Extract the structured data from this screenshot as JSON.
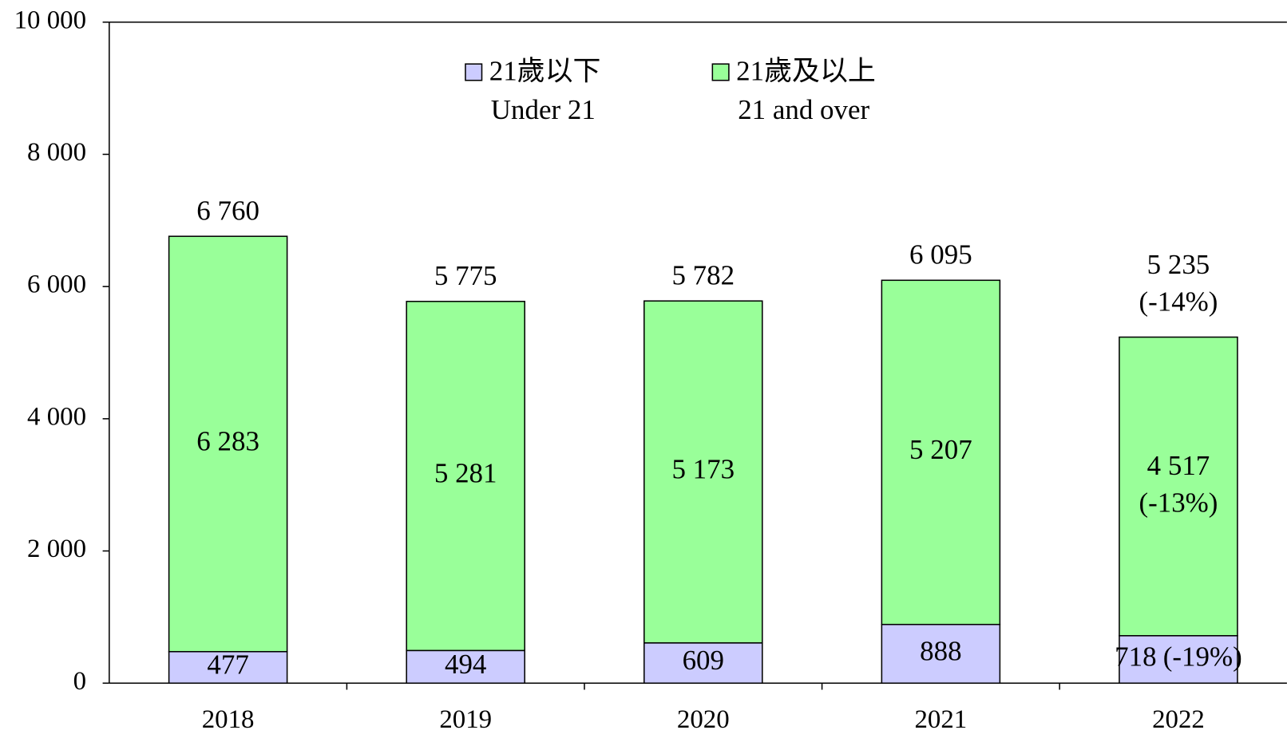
{
  "chart_data": {
    "type": "bar",
    "stacked": true,
    "categories": [
      "2018",
      "2019",
      "2020",
      "2021",
      "2022"
    ],
    "series": [
      {
        "name": "21歲以下",
        "name_en": "Under 21",
        "color": "#ccccff",
        "values": [
          477,
          494,
          609,
          888,
          718
        ],
        "value_labels": [
          "477",
          "494",
          "609",
          "888",
          "718"
        ],
        "change_labels": [
          null,
          null,
          null,
          null,
          "(-19%)"
        ]
      },
      {
        "name": "21歲及以上",
        "name_en": "21 and over",
        "color": "#99ff99",
        "values": [
          6283,
          5281,
          5173,
          5207,
          4517
        ],
        "value_labels": [
          "6 283",
          "5 281",
          "5 173",
          "5 207",
          "4 517"
        ],
        "change_labels": [
          null,
          null,
          null,
          null,
          "(-13%)"
        ]
      }
    ],
    "totals": {
      "values": [
        6760,
        5775,
        5782,
        6095,
        5235
      ],
      "value_labels": [
        "6 760",
        "5 775",
        "5 782",
        "6 095",
        "5 235"
      ],
      "change_labels": [
        null,
        null,
        null,
        null,
        "(-14%)"
      ]
    },
    "ylim": [
      0,
      10000
    ],
    "yticks": [
      0,
      {
        "value": 2000,
        "label": "2 000"
      },
      {
        "value": 4000,
        "label": "4 000"
      },
      {
        "value": 6000,
        "label": "6 000"
      },
      {
        "value": 8000,
        "label": "8 000"
      },
      {
        "value": 10000,
        "label": "10 000"
      }
    ],
    "legend": "top"
  }
}
